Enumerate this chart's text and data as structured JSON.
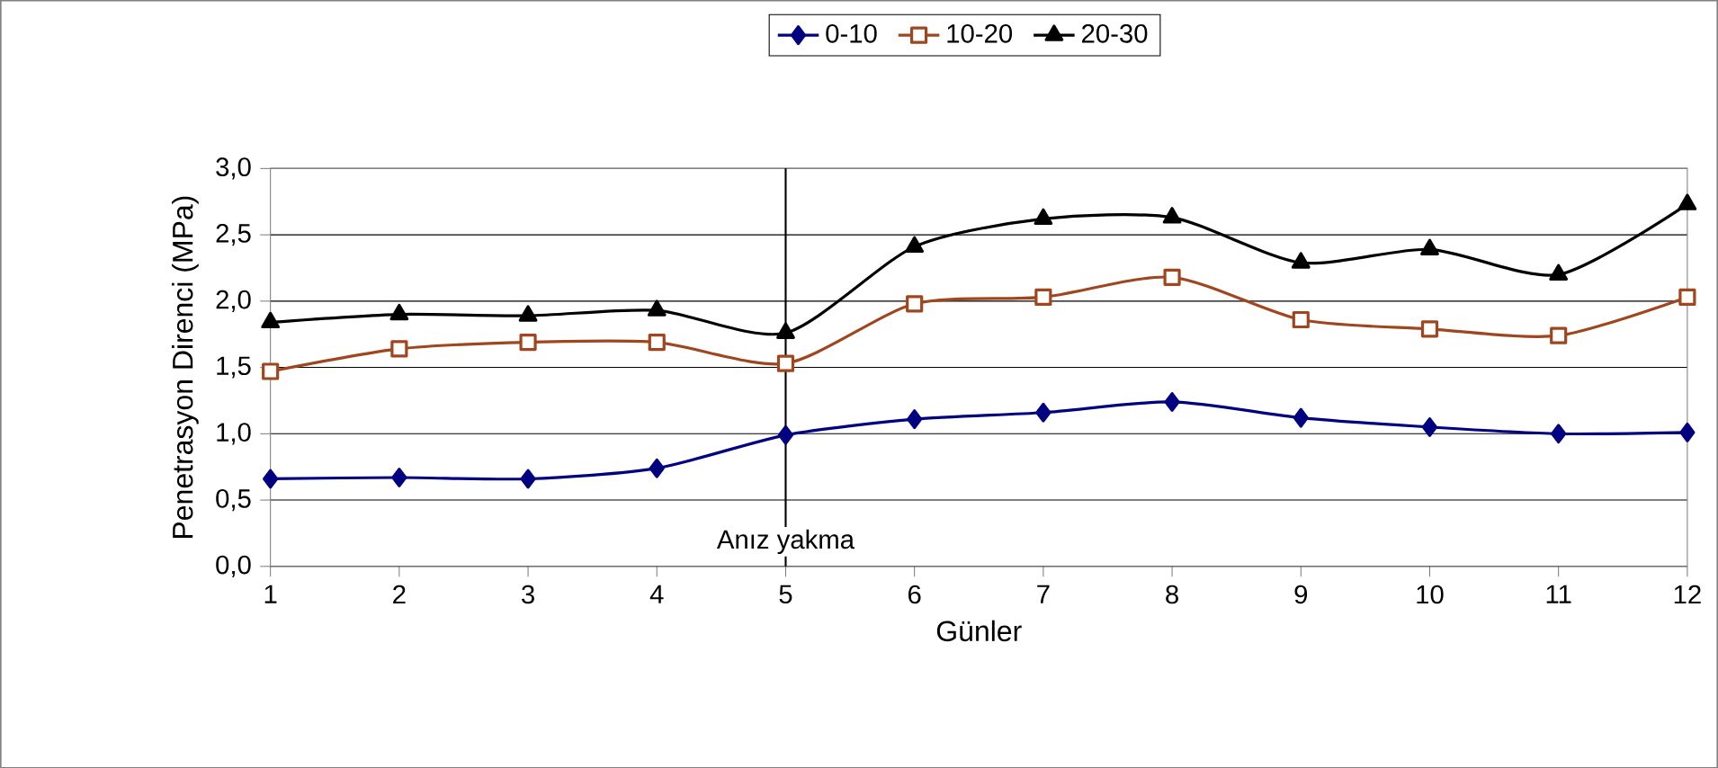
{
  "chart_data": {
    "type": "line",
    "xlabel": "Günler",
    "ylabel": "Penetrasyon Direnci (MPa)",
    "categories": [
      "1",
      "2",
      "3",
      "4",
      "5",
      "6",
      "7",
      "8",
      "9",
      "10",
      "11",
      "12"
    ],
    "series": [
      {
        "name": "0-10",
        "color": "#000080",
        "marker": "diamond",
        "values": [
          0.66,
          0.67,
          0.66,
          0.74,
          0.99,
          1.11,
          1.16,
          1.24,
          1.12,
          1.05,
          1.0,
          1.01
        ]
      },
      {
        "name": "10-20",
        "color": "#a0461e",
        "marker": "square",
        "values": [
          1.47,
          1.64,
          1.69,
          1.69,
          1.53,
          1.98,
          2.03,
          2.18,
          1.86,
          1.79,
          1.74,
          2.03
        ]
      },
      {
        "name": "20-30",
        "color": "#000000",
        "marker": "triangle",
        "values": [
          1.84,
          1.9,
          1.89,
          1.93,
          1.76,
          2.41,
          2.62,
          2.63,
          2.29,
          2.39,
          2.2,
          2.73
        ]
      }
    ],
    "ylim": [
      0,
      3
    ],
    "yticks": [
      {
        "value": 0,
        "label": "0,0"
      },
      {
        "value": 0.5,
        "label": "0,5"
      },
      {
        "value": 1,
        "label": "1,0"
      },
      {
        "value": 1.5,
        "label": "1,5"
      },
      {
        "value": 2,
        "label": "2,0"
      },
      {
        "value": 2.5,
        "label": "2,5"
      },
      {
        "value": 3,
        "label": "3,0"
      }
    ],
    "grid": "y",
    "legend": "top",
    "ref_lines": [
      {
        "axis": "x",
        "value": "5",
        "label": "Anız yakma",
        "color": "#000000"
      }
    ]
  }
}
